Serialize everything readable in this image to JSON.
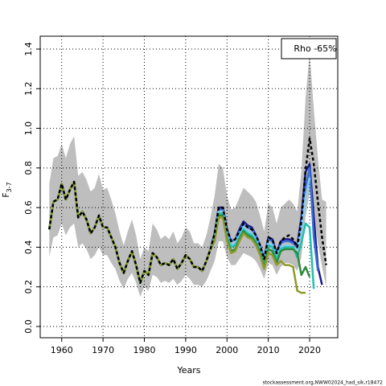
{
  "chart_data": {
    "type": "line",
    "ylabel": "F",
    "ylabel_subscript": "3-7",
    "xlabel": "Years",
    "annotation": "Rho -65%",
    "footer": "stockassessment.org,NWW02024_had_sik,r18472",
    "xlim": [
      1954.8,
      2026.8
    ],
    "ylim": [
      -0.057,
      1.465
    ],
    "xticks": [
      1960,
      1970,
      1980,
      1990,
      2000,
      2010,
      2020
    ],
    "yticks": [
      {
        "value": 0,
        "label": "0.0"
      },
      0.2,
      0.4,
      0.6,
      0.8,
      {
        "value": 1,
        "label": "1.0"
      },
      1.2,
      1.4
    ],
    "grid": true,
    "x": [
      1957,
      1958,
      1959,
      1960,
      1961,
      1962,
      1963,
      1964,
      1965,
      1966,
      1967,
      1968,
      1969,
      1970,
      1971,
      1972,
      1973,
      1974,
      1975,
      1976,
      1977,
      1978,
      1979,
      1980,
      1981,
      1982,
      1983,
      1984,
      1985,
      1986,
      1987,
      1988,
      1989,
      1990,
      1991,
      1992,
      1993,
      1994,
      1995,
      1996,
      1997,
      1998,
      1999,
      2000,
      2001,
      2002,
      2003,
      2004,
      2005,
      2006,
      2007,
      2008,
      2009,
      2010,
      2011,
      2012,
      2013,
      2014,
      2015,
      2016,
      2017,
      2018,
      2019,
      2020,
      2021,
      2022,
      2023,
      2024
    ],
    "band": {
      "color": "#bebebe",
      "upper": [
        0.72,
        0.85,
        0.86,
        0.92,
        0.85,
        0.92,
        0.96,
        0.76,
        0.78,
        0.74,
        0.68,
        0.7,
        0.77,
        0.69,
        0.7,
        0.64,
        0.57,
        0.48,
        0.41,
        0.48,
        0.54,
        0.46,
        0.34,
        0.4,
        0.38,
        0.52,
        0.49,
        0.44,
        0.46,
        0.44,
        0.48,
        0.42,
        0.45,
        0.5,
        0.48,
        0.42,
        0.42,
        0.4,
        0.46,
        0.55,
        0.66,
        0.82,
        0.8,
        0.66,
        0.59,
        0.6,
        0.65,
        0.7,
        0.68,
        0.66,
        0.63,
        0.56,
        0.48,
        0.62,
        0.6,
        0.52,
        0.6,
        0.62,
        0.64,
        0.62,
        0.58,
        0.78,
        1.15,
        1.38,
        1.1,
        0.85,
        0.64,
        0.63
      ],
      "lower": [
        0.35,
        0.45,
        0.46,
        0.52,
        0.46,
        0.5,
        0.52,
        0.4,
        0.42,
        0.39,
        0.34,
        0.36,
        0.4,
        0.36,
        0.36,
        0.32,
        0.29,
        0.23,
        0.19,
        0.24,
        0.27,
        0.22,
        0.15,
        0.2,
        0.18,
        0.26,
        0.25,
        0.22,
        0.23,
        0.22,
        0.24,
        0.21,
        0.23,
        0.26,
        0.24,
        0.21,
        0.21,
        0.2,
        0.23,
        0.28,
        0.33,
        0.43,
        0.43,
        0.35,
        0.31,
        0.31,
        0.34,
        0.37,
        0.36,
        0.35,
        0.33,
        0.29,
        0.24,
        0.32,
        0.31,
        0.26,
        0.3,
        0.32,
        0.32,
        0.31,
        0.28,
        0.35,
        0.55,
        0.68,
        0.56,
        0.42,
        0.3,
        0.2
      ]
    },
    "series": [
      {
        "color": "#1a1a8c",
        "values": [
          0.49,
          0.63,
          0.64,
          0.72,
          0.64,
          0.69,
          0.73,
          0.55,
          0.58,
          0.54,
          0.47,
          0.5,
          0.56,
          0.5,
          0.5,
          0.45,
          0.4,
          0.32,
          0.27,
          0.33,
          0.38,
          0.31,
          0.22,
          0.28,
          0.26,
          0.37,
          0.35,
          0.31,
          0.32,
          0.31,
          0.34,
          0.29,
          0.32,
          0.36,
          0.34,
          0.3,
          0.3,
          0.28,
          0.33,
          0.39,
          0.47,
          0.6,
          0.6,
          0.49,
          0.43,
          0.44,
          0.49,
          0.53,
          0.51,
          0.5,
          0.46,
          0.41,
          0.34,
          0.45,
          0.44,
          0.37,
          0.43,
          0.44,
          0.44,
          0.43,
          0.41,
          0.55,
          0.78,
          0.82,
          0.55,
          0.3,
          0.21,
          null
        ]
      },
      {
        "color": "#3b6fd6",
        "values": [
          0.49,
          0.63,
          0.64,
          0.72,
          0.64,
          0.69,
          0.73,
          0.55,
          0.58,
          0.54,
          0.47,
          0.5,
          0.56,
          0.5,
          0.5,
          0.45,
          0.4,
          0.32,
          0.27,
          0.33,
          0.38,
          0.31,
          0.22,
          0.28,
          0.26,
          0.37,
          0.35,
          0.31,
          0.32,
          0.31,
          0.34,
          0.29,
          0.32,
          0.36,
          0.34,
          0.3,
          0.3,
          0.28,
          0.33,
          0.39,
          0.46,
          0.59,
          0.59,
          0.48,
          0.43,
          0.44,
          0.48,
          0.52,
          0.5,
          0.49,
          0.46,
          0.41,
          0.34,
          0.44,
          0.43,
          0.36,
          0.42,
          0.43,
          0.43,
          0.42,
          0.4,
          0.52,
          0.7,
          0.8,
          0.45,
          0.28,
          null,
          null
        ]
      },
      {
        "color": "#87ceeb",
        "values": [
          0.49,
          0.63,
          0.64,
          0.72,
          0.64,
          0.69,
          0.73,
          0.55,
          0.58,
          0.54,
          0.47,
          0.5,
          0.56,
          0.5,
          0.5,
          0.45,
          0.4,
          0.32,
          0.27,
          0.33,
          0.38,
          0.31,
          0.22,
          0.28,
          0.26,
          0.37,
          0.35,
          0.31,
          0.32,
          0.31,
          0.34,
          0.29,
          0.32,
          0.36,
          0.34,
          0.3,
          0.3,
          0.28,
          0.33,
          0.39,
          0.45,
          0.58,
          0.58,
          0.46,
          0.41,
          0.42,
          0.46,
          0.5,
          0.48,
          0.47,
          0.44,
          0.39,
          0.32,
          0.42,
          0.41,
          0.35,
          0.4,
          0.41,
          0.41,
          0.4,
          0.39,
          0.48,
          0.65,
          0.75,
          null,
          null,
          null,
          null
        ]
      },
      {
        "color": "#20c0b0",
        "values": [
          0.49,
          0.63,
          0.64,
          0.72,
          0.64,
          0.69,
          0.73,
          0.55,
          0.58,
          0.54,
          0.47,
          0.5,
          0.56,
          0.5,
          0.5,
          0.45,
          0.4,
          0.32,
          0.27,
          0.33,
          0.38,
          0.31,
          0.22,
          0.28,
          0.26,
          0.37,
          0.35,
          0.31,
          0.32,
          0.31,
          0.34,
          0.29,
          0.32,
          0.36,
          0.34,
          0.3,
          0.3,
          0.28,
          0.33,
          0.39,
          0.45,
          0.57,
          0.57,
          0.45,
          0.4,
          0.41,
          0.45,
          0.49,
          0.47,
          0.46,
          0.43,
          0.38,
          0.31,
          0.41,
          0.4,
          0.34,
          0.39,
          0.4,
          0.4,
          0.4,
          0.35,
          0.42,
          0.52,
          0.5,
          0.19,
          null,
          null,
          null
        ]
      },
      {
        "color": "#2e8b3a",
        "values": [
          0.49,
          0.63,
          0.64,
          0.72,
          0.64,
          0.69,
          0.73,
          0.55,
          0.58,
          0.54,
          0.47,
          0.5,
          0.56,
          0.5,
          0.5,
          0.45,
          0.4,
          0.32,
          0.27,
          0.33,
          0.38,
          0.31,
          0.22,
          0.28,
          0.26,
          0.37,
          0.35,
          0.31,
          0.32,
          0.31,
          0.34,
          0.29,
          0.32,
          0.36,
          0.34,
          0.3,
          0.3,
          0.28,
          0.33,
          0.39,
          0.44,
          0.56,
          0.56,
          0.44,
          0.38,
          0.39,
          0.44,
          0.48,
          0.46,
          0.45,
          0.42,
          0.37,
          0.3,
          0.39,
          0.38,
          0.32,
          0.38,
          0.39,
          0.39,
          0.39,
          0.37,
          0.26,
          0.3,
          0.25,
          null,
          null,
          null,
          null
        ]
      },
      {
        "color": "#8f9a2a",
        "values": [
          0.49,
          0.63,
          0.64,
          0.72,
          0.64,
          0.69,
          0.73,
          0.55,
          0.58,
          0.54,
          0.47,
          0.5,
          0.56,
          0.5,
          0.5,
          0.45,
          0.4,
          0.32,
          0.27,
          0.33,
          0.38,
          0.31,
          0.22,
          0.28,
          0.26,
          0.37,
          0.35,
          0.31,
          0.32,
          0.31,
          0.34,
          0.29,
          0.32,
          0.36,
          0.34,
          0.3,
          0.3,
          0.28,
          0.33,
          0.39,
          0.43,
          0.55,
          0.55,
          0.43,
          0.37,
          0.38,
          0.43,
          0.47,
          0.45,
          0.44,
          0.41,
          0.36,
          0.29,
          0.37,
          0.36,
          0.31,
          0.33,
          0.31,
          0.31,
          0.3,
          0.18,
          0.17,
          0.17,
          null,
          null,
          null,
          null,
          null
        ]
      },
      {
        "color": "#000000",
        "dashed": true,
        "values": [
          0.49,
          0.63,
          0.64,
          0.72,
          0.64,
          0.69,
          0.73,
          0.55,
          0.58,
          0.54,
          0.47,
          0.5,
          0.56,
          0.5,
          0.5,
          0.45,
          0.4,
          0.32,
          0.27,
          0.33,
          0.38,
          0.31,
          0.22,
          0.28,
          0.26,
          0.37,
          0.35,
          0.31,
          0.32,
          0.31,
          0.34,
          0.29,
          0.32,
          0.36,
          0.34,
          0.3,
          0.3,
          0.28,
          0.33,
          0.39,
          0.47,
          0.6,
          0.6,
          0.49,
          0.43,
          0.44,
          0.48,
          0.52,
          0.5,
          0.49,
          0.46,
          0.41,
          0.34,
          0.45,
          0.44,
          0.37,
          0.43,
          0.45,
          0.46,
          0.44,
          0.4,
          0.53,
          0.79,
          0.95,
          0.82,
          0.63,
          0.45,
          0.31
        ]
      }
    ]
  }
}
